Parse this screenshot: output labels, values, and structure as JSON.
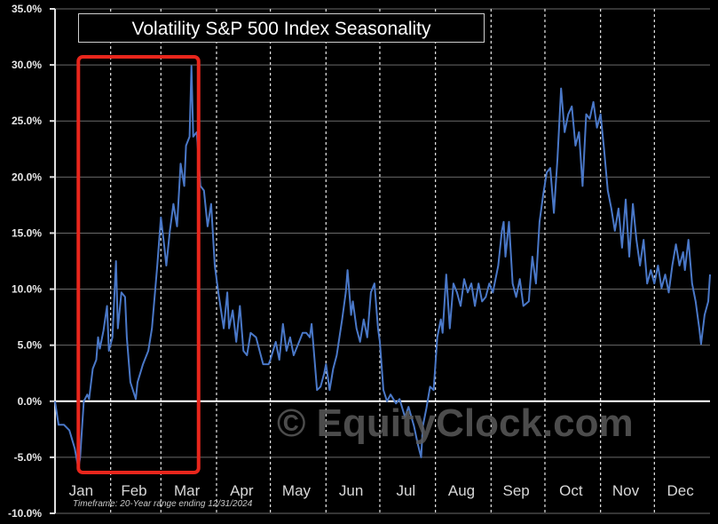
{
  "chart_data": {
    "type": "line",
    "title": "Volatility S&P 500 Index Seasonality",
    "xlabel": "",
    "ylabel": "",
    "x_unit": "day of year",
    "xlim": [
      0,
      365
    ],
    "ylim": [
      -10,
      35
    ],
    "y_ticks": [
      "-10.0%",
      "-5.0%",
      "0.0%",
      "5.0%",
      "10.0%",
      "15.0%",
      "20.0%",
      "25.0%",
      "30.0%",
      "35.0%"
    ],
    "y_tick_values": [
      -10,
      -5,
      0,
      5,
      10,
      15,
      20,
      25,
      30,
      35
    ],
    "x_tick_labels": [
      "Jan",
      "Feb",
      "Mar",
      "Apr",
      "May",
      "Jun",
      "Jul",
      "Aug",
      "Sep",
      "Oct",
      "Nov",
      "Dec"
    ],
    "x_tick_days": [
      0,
      31,
      59,
      90,
      120,
      151,
      181,
      212,
      243,
      273,
      304,
      334
    ],
    "grid": true,
    "line_color": "#4a78c8",
    "highlight": {
      "from_day": 13,
      "to_day": 80,
      "color": "#e8261c"
    },
    "x": [
      0,
      2,
      5,
      8,
      11,
      13,
      14,
      16,
      18,
      19,
      21,
      23,
      24,
      25,
      27,
      29,
      30,
      32,
      34,
      35,
      37,
      39,
      40,
      42,
      45,
      46,
      49,
      52,
      54,
      57,
      59,
      61,
      62,
      64,
      66,
      68,
      70,
      72,
      73,
      75,
      76,
      77,
      79,
      81,
      83,
      85,
      87,
      89,
      91,
      94,
      96,
      97,
      99,
      101,
      103,
      105,
      107,
      109,
      112,
      114,
      116,
      119,
      120,
      123,
      125,
      127,
      129,
      131,
      133,
      136,
      138,
      140,
      142,
      143,
      144,
      146,
      148,
      150,
      151,
      153,
      155,
      157,
      160,
      162,
      163,
      165,
      166,
      168,
      170,
      172,
      174,
      176,
      178,
      180,
      181,
      183,
      185,
      187,
      190,
      192,
      195,
      197,
      200,
      202,
      204,
      205,
      207,
      209,
      211,
      213,
      215,
      216,
      218,
      220,
      222,
      224,
      226,
      228,
      230,
      232,
      234,
      236,
      238,
      240,
      242,
      244,
      247,
      249,
      250,
      251,
      253,
      255,
      257,
      259,
      261,
      264,
      266,
      268,
      270,
      272,
      274,
      276,
      278,
      280,
      282,
      284,
      286,
      288,
      290,
      292,
      294,
      296,
      298,
      300,
      302,
      304,
      306,
      308,
      310,
      312,
      314,
      316,
      318,
      320,
      322,
      324,
      326,
      328,
      330,
      332,
      334,
      336,
      338,
      340,
      342,
      344,
      346,
      348,
      350,
      351,
      353,
      355,
      357,
      359,
      360,
      362,
      364,
      365
    ],
    "y": [
      0.0,
      -2.1,
      -2.1,
      -2.6,
      -4.2,
      -6.0,
      -5.0,
      0.0,
      0.6,
      0.2,
      2.9,
      3.7,
      5.7,
      4.7,
      6.3,
      8.5,
      4.5,
      5.7,
      12.5,
      6.5,
      9.7,
      9.3,
      5.7,
      1.7,
      0.2,
      1.7,
      3.3,
      4.5,
      6.5,
      12.1,
      16.4,
      13.7,
      12.1,
      15.2,
      17.6,
      15.6,
      21.2,
      19.2,
      22.8,
      23.6,
      29.9,
      23.6,
      24.0,
      19.2,
      18.8,
      15.6,
      17.6,
      12.1,
      9.7,
      6.5,
      9.7,
      6.5,
      8.1,
      5.3,
      8.5,
      4.5,
      4.1,
      6.1,
      5.7,
      4.5,
      3.3,
      3.3,
      3.7,
      5.3,
      3.7,
      6.9,
      4.5,
      5.7,
      4.1,
      5.3,
      6.1,
      6.1,
      5.7,
      6.9,
      4.9,
      1.0,
      1.3,
      2.5,
      3.3,
      1.0,
      2.9,
      4.1,
      7.3,
      9.7,
      11.7,
      7.7,
      8.9,
      6.5,
      5.3,
      7.3,
      5.7,
      9.7,
      10.5,
      6.5,
      5.3,
      1.0,
      0.0,
      0.6,
      -0.2,
      0.2,
      -1.4,
      -0.5,
      -2.2,
      -3.7,
      -5.0,
      -2.2,
      -0.6,
      1.3,
      1.0,
      5.7,
      7.3,
      6.1,
      11.3,
      6.5,
      10.5,
      9.7,
      8.5,
      10.9,
      9.7,
      10.5,
      8.5,
      10.5,
      8.9,
      9.3,
      10.5,
      9.7,
      12.1,
      15.2,
      16.0,
      12.9,
      16.0,
      10.5,
      9.3,
      10.9,
      8.5,
      8.9,
      12.9,
      10.5,
      16.0,
      18.4,
      20.4,
      20.8,
      16.8,
      21.6,
      27.9,
      24.0,
      25.6,
      26.3,
      22.8,
      24.0,
      19.2,
      25.6,
      25.2,
      26.7,
      24.4,
      25.6,
      22.4,
      18.8,
      17.2,
      15.2,
      17.2,
      13.7,
      18.0,
      12.9,
      17.6,
      14.4,
      12.1,
      14.4,
      10.5,
      11.7,
      10.5,
      12.1,
      10.1,
      11.3,
      9.7,
      12.1,
      14.0,
      12.1,
      13.3,
      11.7,
      14.4,
      10.5,
      8.9,
      6.5,
      5.1,
      7.7,
      8.9,
      11.3
    ],
    "annotations": {
      "timeframe": "Timeframe: 20-Year range ending 12/31/2024"
    },
    "watermark": "EquityClock.com"
  }
}
